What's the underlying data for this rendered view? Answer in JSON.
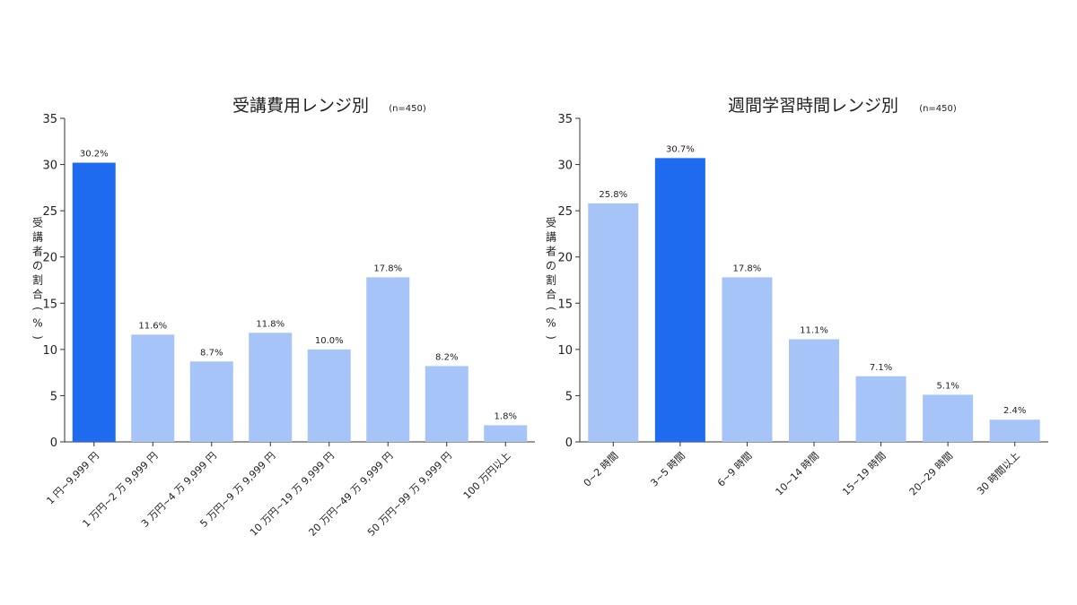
{
  "colors": {
    "highlight": "#1f6bf0",
    "bar": "#a6c4f8",
    "axis": "#333333",
    "text": "#222222"
  },
  "chart_data": [
    {
      "type": "bar",
      "title": "受講費用レンジ別",
      "subtitle": "(n=450)",
      "ylabel": "受講者の割合(%)",
      "xlabel": "",
      "ylim": [
        0,
        35
      ],
      "yticks": [
        0,
        5,
        10,
        15,
        20,
        25,
        30,
        35
      ],
      "grid": false,
      "categories": [
        "1 円~9,999 円",
        "1 万円~2 万 9,999 円",
        "3 万円~4 万 9,999 円",
        "5 万円~9 万 9,999 円",
        "10 万円~19 万 9,999 円",
        "20 万円~49 万 9,999 円",
        "50 万円~99 万 9,999 円",
        "100 万円以上"
      ],
      "values": [
        30.2,
        11.6,
        8.7,
        11.8,
        10.0,
        17.8,
        8.2,
        1.8
      ],
      "data_labels": [
        "30.2%",
        "11.6%",
        "8.7%",
        "11.8%",
        "10.0%",
        "17.8%",
        "8.2%",
        "1.8%"
      ],
      "highlight_index": 0
    },
    {
      "type": "bar",
      "title": "週間学習時間レンジ別",
      "subtitle": "(n=450)",
      "ylabel": "受講者の割合(%)",
      "xlabel": "",
      "ylim": [
        0,
        35
      ],
      "yticks": [
        0,
        5,
        10,
        15,
        20,
        25,
        30,
        35
      ],
      "grid": false,
      "categories": [
        "0~2 時間",
        "3~5 時間",
        "6~9 時間",
        "10~14 時間",
        "15~19 時間",
        "20~29 時間",
        "30 時間以上"
      ],
      "values": [
        25.8,
        30.7,
        17.8,
        11.1,
        7.1,
        5.1,
        2.4
      ],
      "data_labels": [
        "25.8%",
        "30.7%",
        "17.8%",
        "11.1%",
        "7.1%",
        "5.1%",
        "2.4%"
      ],
      "highlight_index": 1
    }
  ]
}
